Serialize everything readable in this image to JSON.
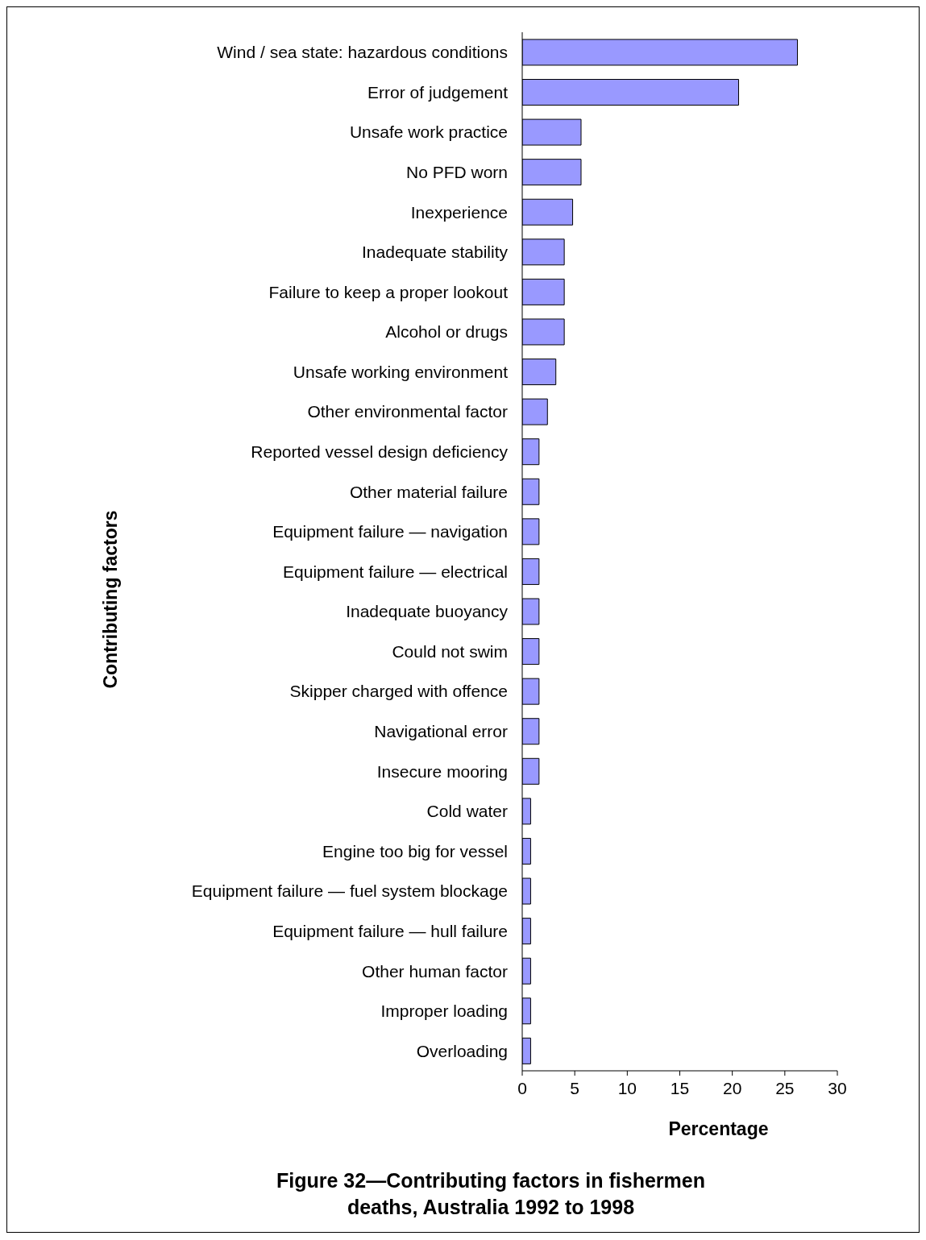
{
  "chart_data": {
    "type": "bar",
    "orientation": "horizontal",
    "title": "Figure 32—Contributing factors in fishermen deaths, Australia 1992 to 1998",
    "xlabel": "Percentage",
    "ylabel": "Contributing factors",
    "categories": [
      "Wind /  sea state: hazardous conditions",
      "Error of judgement",
      "Unsafe work practice",
      "No PFD worn",
      "Inexperience",
      "Inadequate stability",
      "Failure to keep a proper lookout",
      "Alcohol or drugs",
      "Unsafe working environment",
      "Other environmental factor",
      "Reported vessel design deficiency",
      "Other material failure",
      "Equipment failure — navigation",
      "Equipment failure — electrical",
      "Inadequate buoyancy",
      "Could not swim",
      "Skipper charged with offence",
      "Navigational error",
      "Insecure mooring",
      "Cold water",
      "Engine too big for vessel",
      "Equipment failure — fuel system blockage",
      "Equipment failure — hull failure",
      "Other human factor",
      "Improper loading",
      "Overloading"
    ],
    "values": [
      26.2,
      20.6,
      5.6,
      5.6,
      4.8,
      4.0,
      4.0,
      4.0,
      3.2,
      2.4,
      1.6,
      1.6,
      1.6,
      1.6,
      1.6,
      1.6,
      1.6,
      1.6,
      1.6,
      0.8,
      0.8,
      0.8,
      0.8,
      0.8,
      0.8,
      0.8
    ],
    "color": "#9999ff",
    "xlim": [
      0,
      30
    ],
    "xticks": [
      0,
      5,
      10,
      15,
      20,
      25,
      30
    ]
  }
}
